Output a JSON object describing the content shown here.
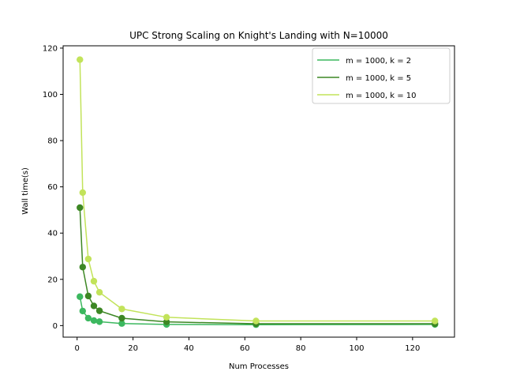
{
  "chart_data": {
    "type": "line",
    "title": "UPC Strong Scaling on Knight's Landing with N=10000",
    "xlabel": "Num Processes",
    "ylabel": "Wall time(s)",
    "xlim": [
      -5,
      135
    ],
    "ylim": [
      -5,
      121
    ],
    "xticks": [
      0,
      20,
      40,
      60,
      80,
      100,
      120
    ],
    "yticks": [
      0,
      20,
      40,
      60,
      80,
      100,
      120
    ],
    "x": [
      1,
      2,
      4,
      6,
      8,
      16,
      32,
      64,
      128
    ],
    "grid": false,
    "legend_position": "top-right",
    "series": [
      {
        "name": "m = 1000, k = 2",
        "color": "#3cb85f",
        "values": [
          12.5,
          6.3,
          3.2,
          2.2,
          1.7,
          0.9,
          0.5,
          0.4,
          0.5
        ]
      },
      {
        "name": "m = 1000, k = 5",
        "color": "#3d8724",
        "values": [
          51.0,
          25.3,
          12.8,
          8.5,
          6.4,
          3.2,
          1.6,
          0.8,
          0.8
        ]
      },
      {
        "name": "m = 1000, k = 10",
        "color": "#c2e35a",
        "values": [
          115.0,
          57.5,
          28.8,
          19.2,
          14.4,
          7.2,
          3.6,
          2.0,
          2.0
        ]
      }
    ]
  }
}
